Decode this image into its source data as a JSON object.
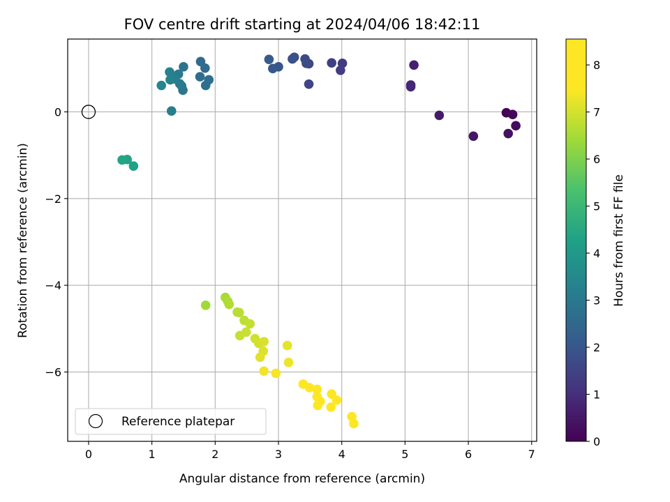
{
  "chart_data": {
    "type": "scatter",
    "title": "FOV centre drift starting at 2024/04/06 18:42:11",
    "xlabel": "Angular distance from reference (arcmin)",
    "ylabel": "Rotation from reference (arcmin)",
    "xlim": [
      -0.33,
      7.08
    ],
    "ylim": [
      -7.6,
      1.68
    ],
    "x_ticks": [
      0,
      1,
      2,
      3,
      4,
      5,
      6,
      7
    ],
    "x_tick_labels": [
      "0",
      "1",
      "2",
      "3",
      "4",
      "5",
      "6",
      "7"
    ],
    "y_ticks": [
      0,
      -2,
      -4,
      -6
    ],
    "y_tick_labels": [
      "0",
      "−2",
      "−4",
      "−6"
    ],
    "grid": true,
    "legend": {
      "placement": "lower-left",
      "entries": [
        {
          "label": "Reference platepar",
          "marker": "open-circle"
        }
      ]
    },
    "reference_point": {
      "x": 0,
      "y": 0
    },
    "colorbar": {
      "label": "Hours from first FF file",
      "range": [
        0,
        8.55
      ],
      "ticks": [
        0,
        1,
        2,
        3,
        4,
        5,
        6,
        7,
        8
      ],
      "tick_labels": [
        "0",
        "1",
        "2",
        "3",
        "4",
        "5",
        "6",
        "7",
        "8"
      ],
      "colormap": "viridis"
    },
    "points": [
      {
        "x": 6.6,
        "y": -0.02,
        "h": 0.05
      },
      {
        "x": 6.7,
        "y": -0.06,
        "h": 0.15
      },
      {
        "x": 6.75,
        "y": -0.32,
        "h": 0.25
      },
      {
        "x": 6.63,
        "y": -0.5,
        "h": 0.35
      },
      {
        "x": 6.08,
        "y": -0.56,
        "h": 0.45
      },
      {
        "x": 5.54,
        "y": -0.08,
        "h": 0.55
      },
      {
        "x": 5.14,
        "y": 1.08,
        "h": 0.7
      },
      {
        "x": 5.09,
        "y": 0.62,
        "h": 0.8
      },
      {
        "x": 5.09,
        "y": 0.58,
        "h": 0.85
      },
      {
        "x": 4.01,
        "y": 1.12,
        "h": 1.3
      },
      {
        "x": 3.98,
        "y": 0.96,
        "h": 1.35
      },
      {
        "x": 3.84,
        "y": 1.13,
        "h": 1.45
      },
      {
        "x": 3.48,
        "y": 0.64,
        "h": 1.55
      },
      {
        "x": 3.48,
        "y": 1.11,
        "h": 1.6
      },
      {
        "x": 3.42,
        "y": 1.22,
        "h": 1.65
      },
      {
        "x": 3.44,
        "y": 1.12,
        "h": 1.7
      },
      {
        "x": 3.25,
        "y": 1.26,
        "h": 1.8
      },
      {
        "x": 3.22,
        "y": 1.22,
        "h": 1.85
      },
      {
        "x": 3.0,
        "y": 1.04,
        "h": 1.95
      },
      {
        "x": 2.91,
        "y": 1.0,
        "h": 2.0
      },
      {
        "x": 2.85,
        "y": 1.21,
        "h": 2.1
      },
      {
        "x": 1.77,
        "y": 1.16,
        "h": 2.55
      },
      {
        "x": 1.84,
        "y": 1.01,
        "h": 2.6
      },
      {
        "x": 1.76,
        "y": 0.81,
        "h": 2.65
      },
      {
        "x": 1.9,
        "y": 0.74,
        "h": 2.7
      },
      {
        "x": 1.85,
        "y": 0.61,
        "h": 2.75
      },
      {
        "x": 1.5,
        "y": 1.04,
        "h": 2.85
      },
      {
        "x": 1.49,
        "y": 0.5,
        "h": 2.95
      },
      {
        "x": 1.47,
        "y": 0.6,
        "h": 3.0
      },
      {
        "x": 1.42,
        "y": 0.87,
        "h": 3.05
      },
      {
        "x": 1.44,
        "y": 0.65,
        "h": 3.1
      },
      {
        "x": 1.36,
        "y": 0.76,
        "h": 3.15
      },
      {
        "x": 1.31,
        "y": 0.02,
        "h": 3.2
      },
      {
        "x": 1.28,
        "y": 0.92,
        "h": 3.25
      },
      {
        "x": 1.29,
        "y": 0.74,
        "h": 3.3
      },
      {
        "x": 1.15,
        "y": 0.61,
        "h": 3.4
      },
      {
        "x": 0.71,
        "y": -1.25,
        "h": 4.3
      },
      {
        "x": 0.61,
        "y": -1.1,
        "h": 4.35
      },
      {
        "x": 0.53,
        "y": -1.11,
        "h": 4.4
      },
      {
        "x": 1.85,
        "y": -4.46,
        "h": 6.4
      },
      {
        "x": 2.16,
        "y": -4.28,
        "h": 6.5
      },
      {
        "x": 2.2,
        "y": -4.37,
        "h": 6.55
      },
      {
        "x": 2.22,
        "y": -4.44,
        "h": 6.6
      },
      {
        "x": 2.35,
        "y": -4.62,
        "h": 6.65
      },
      {
        "x": 2.38,
        "y": -4.63,
        "h": 6.7
      },
      {
        "x": 2.46,
        "y": -4.81,
        "h": 6.75
      },
      {
        "x": 2.55,
        "y": -4.89,
        "h": 6.8
      },
      {
        "x": 2.39,
        "y": -5.16,
        "h": 6.85
      },
      {
        "x": 2.49,
        "y": -5.08,
        "h": 6.9
      },
      {
        "x": 2.63,
        "y": -5.23,
        "h": 6.95
      },
      {
        "x": 2.69,
        "y": -5.34,
        "h": 7.0
      },
      {
        "x": 2.77,
        "y": -5.3,
        "h": 7.05
      },
      {
        "x": 2.76,
        "y": -5.52,
        "h": 7.1
      },
      {
        "x": 2.71,
        "y": -5.66,
        "h": 7.15
      },
      {
        "x": 3.14,
        "y": -5.39,
        "h": 7.2
      },
      {
        "x": 3.16,
        "y": -5.78,
        "h": 7.3
      },
      {
        "x": 2.77,
        "y": -5.98,
        "h": 7.35
      },
      {
        "x": 2.96,
        "y": -6.03,
        "h": 7.4
      },
      {
        "x": 3.39,
        "y": -6.28,
        "h": 7.6
      },
      {
        "x": 3.49,
        "y": -6.36,
        "h": 7.7
      },
      {
        "x": 3.61,
        "y": -6.4,
        "h": 7.75
      },
      {
        "x": 3.61,
        "y": -6.57,
        "h": 7.8
      },
      {
        "x": 3.84,
        "y": -6.51,
        "h": 7.85
      },
      {
        "x": 3.92,
        "y": -6.65,
        "h": 7.9
      },
      {
        "x": 3.66,
        "y": -6.68,
        "h": 7.95
      },
      {
        "x": 3.62,
        "y": -6.77,
        "h": 8.0
      },
      {
        "x": 3.83,
        "y": -6.81,
        "h": 8.1
      },
      {
        "x": 4.16,
        "y": -7.03,
        "h": 8.3
      },
      {
        "x": 4.19,
        "y": -7.19,
        "h": 8.45
      }
    ]
  }
}
